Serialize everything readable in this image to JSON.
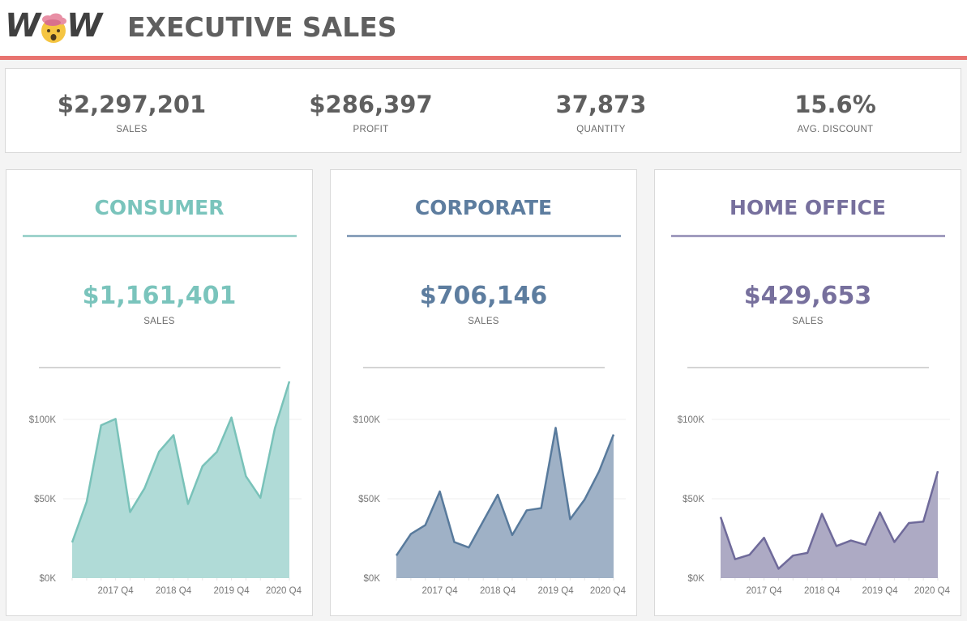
{
  "header": {
    "logo_text_left": "W",
    "logo_text_right": "W",
    "logo_icon": "exploding-head-emoji",
    "title": "EXECUTIVE SALES",
    "accent_color": "#e8736f"
  },
  "kpis": [
    {
      "value": "$2,297,201",
      "label": "SALES"
    },
    {
      "value": "$286,397",
      "label": "PROFIT"
    },
    {
      "value": "37,873",
      "label": "QUANTITY"
    },
    {
      "value": "15.6%",
      "label": "AVG. DISCOUNT"
    }
  ],
  "segments": [
    {
      "title": "CONSUMER",
      "value": "$1,161,401",
      "label": "SALES",
      "color": "#7ac4bc",
      "line_color": "#9fd3cd",
      "fill_color": "#b0dbd7",
      "stroke_color": "#79c2b9"
    },
    {
      "title": "CORPORATE",
      "value": "$706,146",
      "label": "SALES",
      "color": "#5d7d9f",
      "line_color": "#8ba2bc",
      "fill_color": "#9fb1c6",
      "stroke_color": "#587a9c"
    },
    {
      "title": "HOME OFFICE",
      "value": "$429,653",
      "label": "SALES",
      "color": "#77709d",
      "line_color": "#a19cbf",
      "fill_color": "#adaac4",
      "stroke_color": "#6f6a9a"
    }
  ],
  "chart_data": [
    {
      "type": "area",
      "title": "CONSUMER",
      "x": [
        "2017 Q1",
        "2017 Q2",
        "2017 Q3",
        "2017 Q4",
        "2018 Q1",
        "2018 Q2",
        "2018 Q3",
        "2018 Q4",
        "2019 Q1",
        "2019 Q2",
        "2019 Q3",
        "2019 Q4",
        "2020 Q1",
        "2020 Q2",
        "2020 Q3",
        "2020 Q4"
      ],
      "values": [
        22500,
        48000,
        96300,
        100300,
        41600,
        56600,
        79600,
        90100,
        46700,
        70500,
        79600,
        101200,
        64200,
        50600,
        94400,
        123900
      ],
      "yticks": [
        0,
        50000,
        100000
      ],
      "ytick_labels": [
        "$0K",
        "$50K",
        "$100K"
      ],
      "xtick_labels": [
        "2017 Q4",
        "2018 Q4",
        "2019 Q4",
        "2020 Q4"
      ],
      "xlabel": "",
      "ylabel": "",
      "ylim": [
        0,
        125000
      ],
      "grid": true
    },
    {
      "type": "area",
      "title": "CORPORATE",
      "x": [
        "2017 Q1",
        "2017 Q2",
        "2017 Q3",
        "2017 Q4",
        "2018 Q1",
        "2018 Q2",
        "2018 Q3",
        "2018 Q4",
        "2019 Q1",
        "2019 Q2",
        "2019 Q3",
        "2019 Q4",
        "2020 Q1",
        "2020 Q2",
        "2020 Q3",
        "2020 Q4"
      ],
      "values": [
        14200,
        27800,
        33400,
        54600,
        22700,
        19300,
        35900,
        52500,
        27100,
        42700,
        44100,
        94700,
        37100,
        49500,
        67300,
        90500
      ],
      "yticks": [
        0,
        50000,
        100000
      ],
      "ytick_labels": [
        "$0K",
        "$50K",
        "$100K"
      ],
      "xtick_labels": [
        "2017 Q4",
        "2018 Q4",
        "2019 Q4",
        "2020 Q4"
      ],
      "xlabel": "",
      "ylabel": "",
      "ylim": [
        0,
        125000
      ],
      "grid": true
    },
    {
      "type": "area",
      "title": "HOME OFFICE",
      "x": [
        "2017 Q1",
        "2017 Q2",
        "2017 Q3",
        "2017 Q4",
        "2018 Q1",
        "2018 Q2",
        "2018 Q3",
        "2018 Q4",
        "2019 Q1",
        "2019 Q2",
        "2019 Q3",
        "2019 Q4",
        "2020 Q1",
        "2020 Q2",
        "2020 Q3",
        "2020 Q4"
      ],
      "values": [
        38500,
        11900,
        14700,
        25400,
        5900,
        14200,
        15900,
        40500,
        20200,
        23700,
        21000,
        41400,
        22700,
        34700,
        35600,
        67300
      ],
      "yticks": [
        0,
        50000,
        100000
      ],
      "ytick_labels": [
        "$0K",
        "$50K",
        "$100K"
      ],
      "xtick_labels": [
        "2017 Q4",
        "2018 Q4",
        "2019 Q4",
        "2020 Q4"
      ],
      "xlabel": "",
      "ylabel": "",
      "ylim": [
        0,
        125000
      ],
      "grid": true
    }
  ]
}
